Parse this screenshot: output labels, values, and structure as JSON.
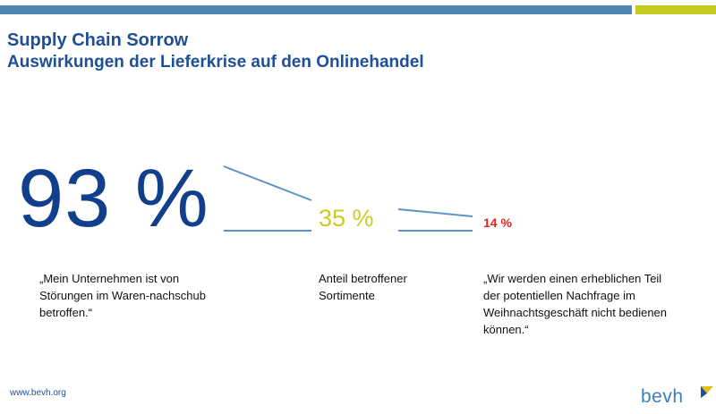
{
  "header": {
    "title": "Supply Chain Sorrow",
    "subtitle": "Auswirkungen der Lieferkrise auf den Onlinehandel"
  },
  "stats": {
    "primary": "93 %",
    "secondary": "35 %",
    "tertiary": "14 %"
  },
  "labels": {
    "primary": "„Mein Unternehmen ist von Störungen im Waren-nachschub betroffen.“",
    "secondary": "Anteil betroffener Sortimente",
    "tertiary": "„Wir werden einen erheblichen Teil der potentiellen Nachfrage im Weihnachtsgeschäft nicht bedienen können.“"
  },
  "footer": {
    "url": "www.bevh.org",
    "logo": "bevh"
  },
  "colors": {
    "brand_blue": "#1f4f96",
    "accent_blue": "#4f86b4",
    "accent_lime": "#c6cc1f",
    "alert_red": "#e0231a"
  }
}
